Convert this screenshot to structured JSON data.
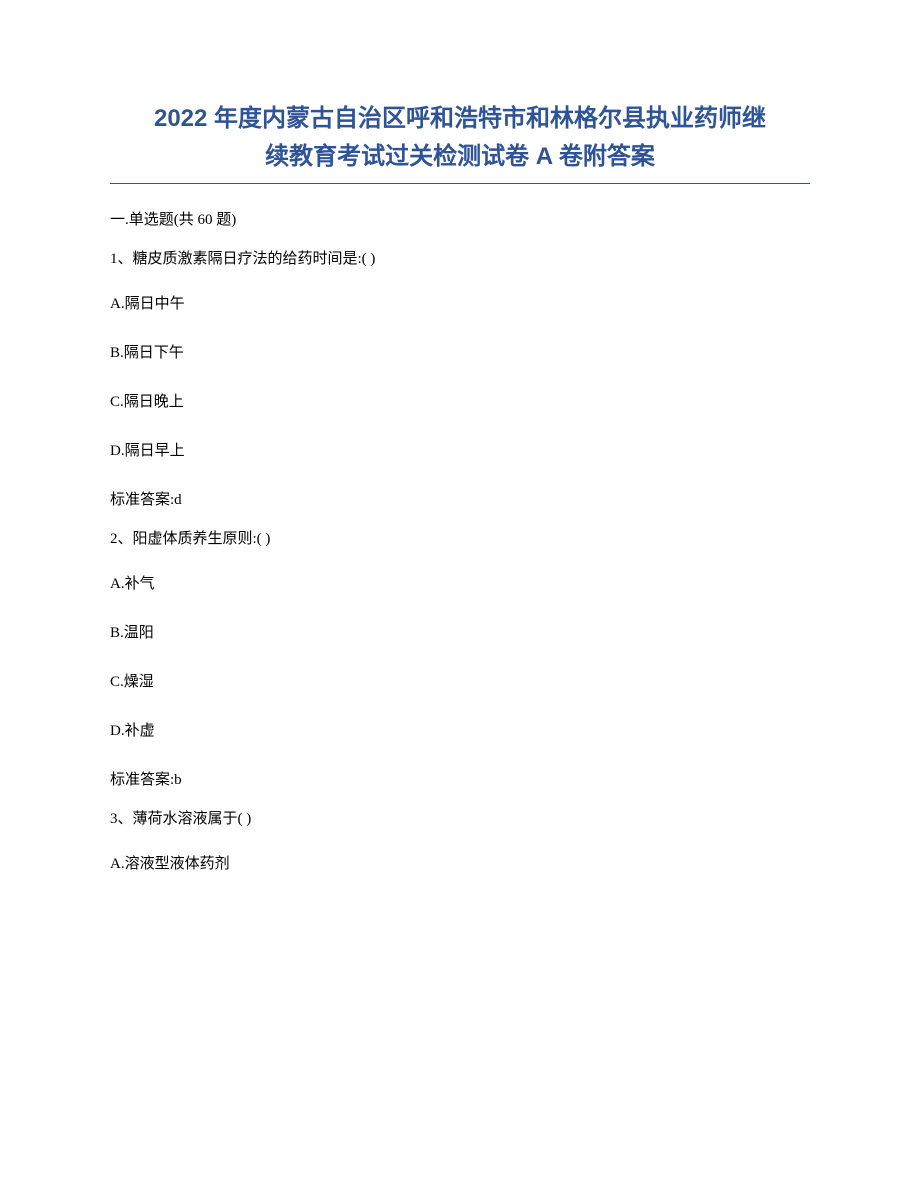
{
  "title_line1": "2022 年度内蒙古自治区呼和浩特市和林格尔县执业药师继",
  "title_line2": "续教育考试过关检测试卷 A 卷附答案",
  "section_header": "一.单选题(共 60 题)",
  "questions": [
    {
      "prompt": "1、糖皮质激素隔日疗法的给药时间是:( )",
      "options": [
        "A.隔日中午",
        "B.隔日下午",
        "C.隔日晚上",
        "D.隔日早上"
      ],
      "answer": "标准答案:d"
    },
    {
      "prompt": "2、阳虚体质养生原则:( )",
      "options": [
        "A.补气",
        "B.温阳",
        "C.燥湿",
        "D.补虚"
      ],
      "answer": "标准答案:b"
    },
    {
      "prompt": "3、薄荷水溶液属于( )",
      "options": [
        "A.溶液型液体药剂"
      ],
      "answer": null
    }
  ],
  "colors": {
    "title_color": "#2e5496",
    "text_color": "#000000",
    "background": "#ffffff"
  },
  "fonts": {
    "title_family": "Microsoft YaHei",
    "body_family": "SimSun",
    "title_size_pt": 18,
    "body_size_pt": 11
  }
}
